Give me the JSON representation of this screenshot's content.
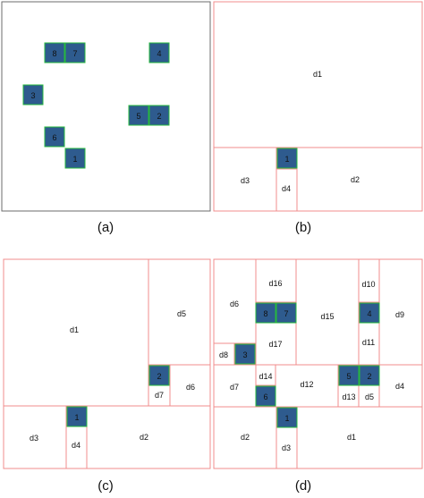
{
  "panels": [
    {
      "caption": "(a)",
      "blocks": [
        "8",
        "7",
        "4",
        "3",
        "5",
        "2",
        "6",
        "1"
      ],
      "regions": []
    },
    {
      "caption": "(b)",
      "blocks": [
        "1"
      ],
      "regions": [
        "d1",
        "d2",
        "d3",
        "d4"
      ]
    },
    {
      "caption": "(c)",
      "blocks": [
        "2",
        "1"
      ],
      "regions": [
        "d1",
        "d5",
        "d6",
        "d7",
        "d3",
        "d4",
        "d2"
      ]
    },
    {
      "caption": "(d)",
      "blocks": [
        "8",
        "7",
        "4",
        "3",
        "5",
        "2",
        "6",
        "1"
      ],
      "regions": [
        "d6",
        "d16",
        "d15",
        "d10",
        "d9",
        "d11",
        "d17",
        "d8",
        "d7",
        "d14",
        "d12",
        "d13",
        "d5",
        "d4",
        "d2",
        "d3",
        "d1"
      ]
    }
  ],
  "colors": {
    "block_fill": "#2e5b8e",
    "block_border": "#27b83e",
    "region_line": "#f08c8c",
    "frame_a": "#6b6b6b",
    "block_text": "#111111",
    "label_text": "#111111"
  }
}
